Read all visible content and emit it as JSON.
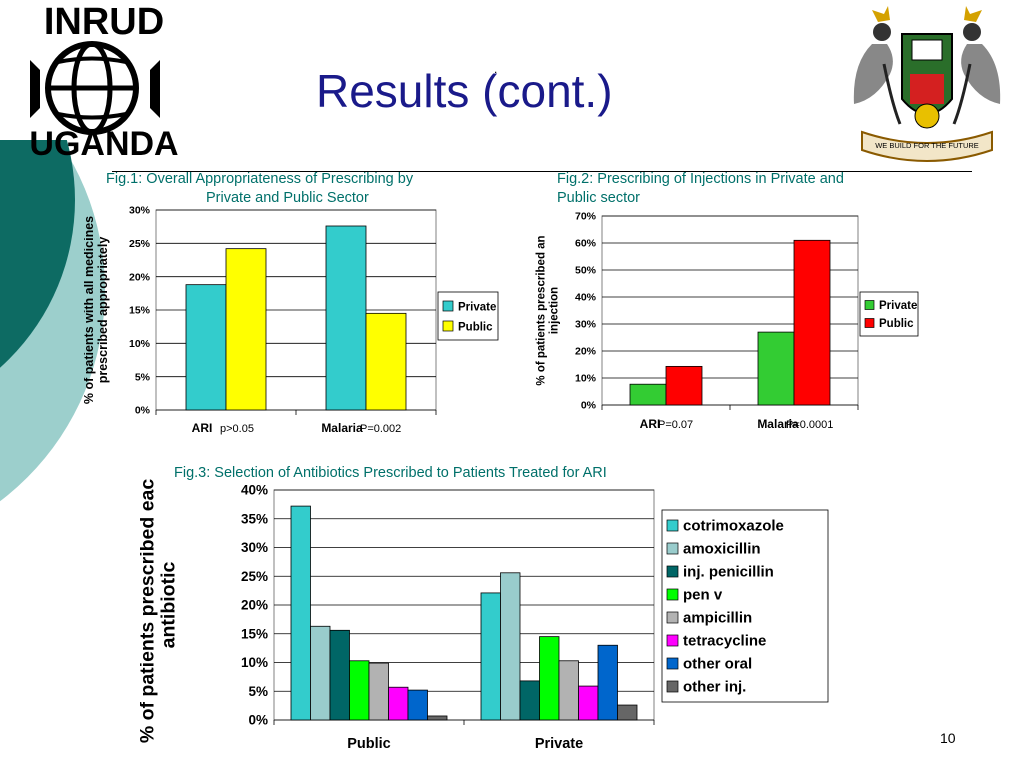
{
  "slide": {
    "title": "Results (cont.)",
    "title_dot": ".",
    "page_number": "10",
    "logo_left_top": "INRUD",
    "logo_left_bottom": "UGANDA",
    "crest_motto": "WE BUILD FOR THE FUTURE",
    "accent_dark": "#0d6b63",
    "accent_light": "#9ccfcc",
    "caption_color": "#00706a"
  },
  "chart_data": [
    {
      "id": "fig1",
      "type": "bar",
      "title": "Fig.1: Overall Appropriateness of Prescribing by Private and Public Sector",
      "title_lines": [
        "Fig.1: Overall Appropriateness of Prescribing by",
        "Private and Public Sector"
      ],
      "ylabel": "% of patients with all medicines prescribed appropriately",
      "ylabel_lines": [
        "% of patients with all medicines",
        "prescribed appropriately"
      ],
      "categories": [
        "ARI",
        "Malaria"
      ],
      "annotations": [
        "p>0.05",
        "P=0.002"
      ],
      "ylim": [
        0,
        30
      ],
      "yticks": [
        "0%",
        "5%",
        "10%",
        "15%",
        "20%",
        "25%",
        "30%"
      ],
      "series": [
        {
          "name": "Private",
          "color": "#33cccc",
          "values": [
            18.8,
            27.6
          ]
        },
        {
          "name": "Public",
          "color": "#ffff00",
          "values": [
            24.2,
            14.5
          ]
        }
      ],
      "legend": "right",
      "grid": true
    },
    {
      "id": "fig2",
      "type": "bar",
      "title": "Fig.2: Prescribing of Injections in Private and Public sector",
      "title_lines": [
        "Fig.2: Prescribing of Injections in Private and",
        "Public sector"
      ],
      "ylabel": "% of patients prescribed an injection",
      "ylabel_lines": [
        "% of patients prescribed an",
        "injection"
      ],
      "categories": [
        "ARI",
        "Malaria"
      ],
      "annotations": [
        "P=0.07",
        "P=0.0001"
      ],
      "ylim": [
        0,
        70
      ],
      "yticks": [
        "0%",
        "10%",
        "20%",
        "30%",
        "40%",
        "50%",
        "60%",
        "70%"
      ],
      "series": [
        {
          "name": "Private",
          "color": "#33cc33",
          "values": [
            7.7,
            27.0
          ]
        },
        {
          "name": "Public",
          "color": "#ff0000",
          "values": [
            14.3,
            61.0
          ]
        }
      ],
      "legend": "right",
      "grid": true
    },
    {
      "id": "fig3",
      "type": "bar",
      "title": "Fig.3: Selection of Antibiotics Prescribed to Patients Treated for ARI",
      "ylabel": "% of patients prescribed each antibiotic",
      "ylabel_lines": [
        "% of patients prescribed each",
        "antibiotic"
      ],
      "categories": [
        "Public",
        "Private"
      ],
      "ylim": [
        0,
        40
      ],
      "yticks": [
        "0%",
        "5%",
        "10%",
        "15%",
        "20%",
        "25%",
        "30%",
        "35%",
        "40%"
      ],
      "series": [
        {
          "name": "cotrimoxazole",
          "color": "#33cccc",
          "values": [
            37.2,
            22.1
          ]
        },
        {
          "name": "amoxicillin",
          "color": "#99cccc",
          "values": [
            16.3,
            25.6
          ]
        },
        {
          "name": "inj. penicillin",
          "color": "#006666",
          "values": [
            15.6,
            6.8
          ]
        },
        {
          "name": "pen v",
          "color": "#00ff00",
          "values": [
            10.3,
            14.5
          ]
        },
        {
          "name": "ampicillin",
          "color": "#b2b2b2",
          "values": [
            9.9,
            10.3
          ]
        },
        {
          "name": "tetracycline",
          "color": "#ff00ff",
          "values": [
            5.7,
            5.9
          ]
        },
        {
          "name": "other oral",
          "color": "#0066cc",
          "values": [
            5.2,
            13.0
          ]
        },
        {
          "name": "other inj.",
          "color": "#666666",
          "values": [
            0.7,
            2.6
          ]
        }
      ],
      "legend": "right",
      "grid": true
    }
  ]
}
